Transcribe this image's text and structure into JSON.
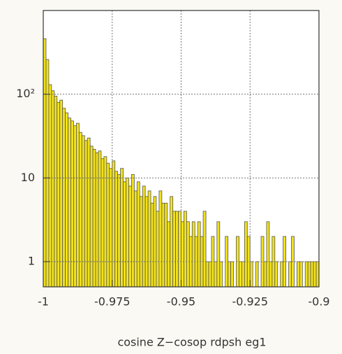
{
  "chart_data": {
    "type": "histogram",
    "x_label": "cosine    Z−cosop rdpsh eg1",
    "color": "#f2e21c",
    "log_y": true,
    "grid": true,
    "xlim": [
      -1,
      -0.9
    ],
    "xticks": [
      -1,
      -0.975,
      -0.95,
      -0.925,
      -0.9
    ],
    "ylim": [
      0.5,
      1000
    ],
    "yticks": [
      1,
      10,
      {
        "value": 100,
        "label": "10²"
      }
    ],
    "bins": [
      -1,
      -0.999,
      -0.998,
      -0.997,
      -0.996,
      -0.995,
      -0.994,
      -0.993,
      -0.992,
      -0.991,
      -0.99,
      -0.989,
      -0.988,
      -0.987,
      -0.986,
      -0.985,
      -0.984,
      -0.983,
      -0.982,
      -0.981,
      -0.98,
      -0.979,
      -0.978,
      -0.977,
      -0.976,
      -0.975,
      -0.974,
      -0.973,
      -0.972,
      -0.971,
      -0.97,
      -0.969,
      -0.968,
      -0.967,
      -0.966,
      -0.965,
      -0.964,
      -0.963,
      -0.962,
      -0.961,
      -0.96,
      -0.959,
      -0.958,
      -0.957,
      -0.956,
      -0.955,
      -0.954,
      -0.953,
      -0.952,
      -0.951,
      -0.95,
      -0.949,
      -0.948,
      -0.947,
      -0.946,
      -0.945,
      -0.944,
      -0.943,
      -0.942,
      -0.941,
      -0.94,
      -0.939,
      -0.938,
      -0.937,
      -0.936,
      -0.935,
      -0.934,
      -0.933,
      -0.932,
      -0.931,
      -0.93,
      -0.929,
      -0.928,
      -0.927,
      -0.926,
      -0.925,
      -0.924,
      -0.923,
      -0.922,
      -0.921,
      -0.92,
      -0.919,
      -0.918,
      -0.917,
      -0.916,
      -0.915,
      -0.914,
      -0.913,
      -0.912,
      -0.911,
      -0.91,
      -0.909,
      -0.908,
      -0.907,
      -0.906,
      -0.905,
      -0.904,
      -0.903,
      -0.902,
      -0.901,
      -0.9
    ],
    "values": [
      460,
      260,
      130,
      110,
      95,
      80,
      85,
      68,
      60,
      52,
      48,
      42,
      45,
      35,
      32,
      28,
      30,
      24,
      22,
      20,
      21,
      17,
      18,
      15,
      13,
      16,
      12,
      11,
      13,
      9,
      10,
      8,
      11,
      7,
      9,
      6,
      8,
      6,
      7,
      5,
      6,
      4,
      7,
      5,
      5,
      3,
      6,
      4,
      4,
      4,
      3,
      4,
      3,
      2,
      3,
      2,
      3,
      2,
      4,
      1,
      1,
      2,
      1,
      3,
      1,
      0,
      2,
      1,
      1,
      0,
      2,
      1,
      1,
      3,
      2,
      1,
      0,
      1,
      0,
      2,
      1,
      3,
      1,
      2,
      1,
      0,
      1,
      2,
      0,
      1,
      2,
      0,
      1,
      1,
      0,
      1,
      1,
      1,
      1,
      1
    ]
  }
}
